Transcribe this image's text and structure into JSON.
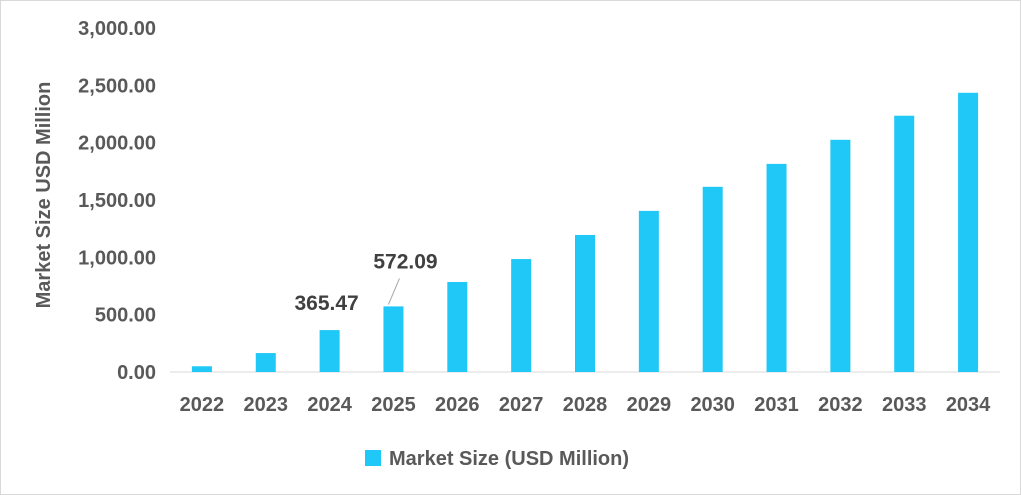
{
  "chart_data": {
    "type": "bar",
    "title": "",
    "xlabel": "",
    "ylabel": "Market Size USD Million",
    "ylim": [
      0,
      3000
    ],
    "y_ticks": [
      "0.00",
      "500.00",
      "1,000.00",
      "1,500.00",
      "2,000.00",
      "2,500.00",
      "3,000.00"
    ],
    "categories": [
      "2022",
      "2023",
      "2024",
      "2025",
      "2026",
      "2027",
      "2028",
      "2029",
      "2030",
      "2031",
      "2032",
      "2033",
      "2034"
    ],
    "series": [
      {
        "name": "Market Size (USD Million)",
        "color": "#1fc8f7",
        "values": [
          50,
          165,
          365.47,
          572.09,
          785,
          985,
          1195,
          1405,
          1615,
          1815,
          2025,
          2235,
          2435
        ]
      }
    ],
    "data_labels": [
      {
        "category": "2024",
        "text": "365.47"
      },
      {
        "category": "2025",
        "text": "572.09"
      }
    ],
    "grid": false,
    "legend_position": "bottom"
  }
}
